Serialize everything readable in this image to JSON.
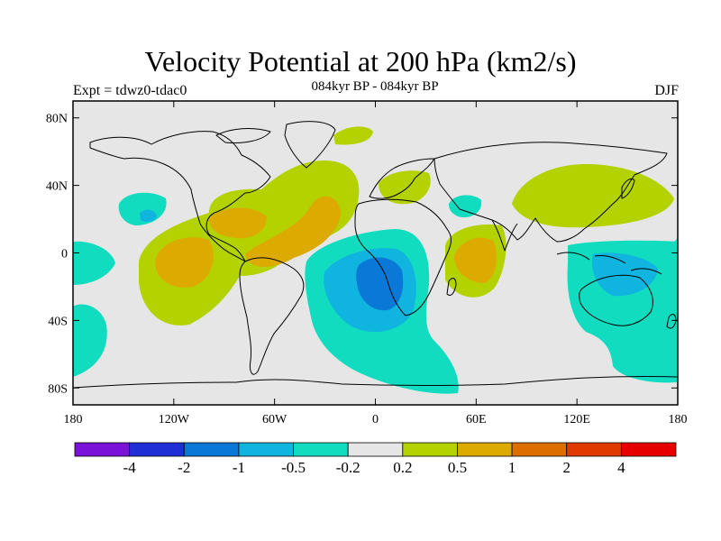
{
  "header": {
    "title": "Velocity Potential at 200 hPa (km2/s)",
    "subtitle": "084kyr BP - 084kyr BP",
    "expt_label": "Expt = tdwz0-tdac0",
    "season": "DJF"
  },
  "axes": {
    "lat_ticks": [
      "80N",
      "40N",
      "0",
      "40S",
      "80S"
    ],
    "lon_ticks": [
      "180",
      "120W",
      "60W",
      "0",
      "60E",
      "120E",
      "180"
    ]
  },
  "colorbar": {
    "colors": [
      "#7a12d8",
      "#1f2fd6",
      "#0a78d6",
      "#0fb4df",
      "#12dcc0",
      "#e6e6e6",
      "#b3d200",
      "#dcaa00",
      "#dc6e00",
      "#e03a00",
      "#e60000"
    ],
    "labels": [
      "-4",
      "-2",
      "-1",
      "-0.5",
      "-0.2",
      "0.2",
      "0.5",
      "1",
      "2",
      "4"
    ]
  },
  "map": {
    "background_color": "#e6e6e6",
    "projection": "cylindrical equidistant",
    "lon_range": [
      -180,
      180
    ],
    "lat_range": [
      -90,
      90
    ]
  }
}
